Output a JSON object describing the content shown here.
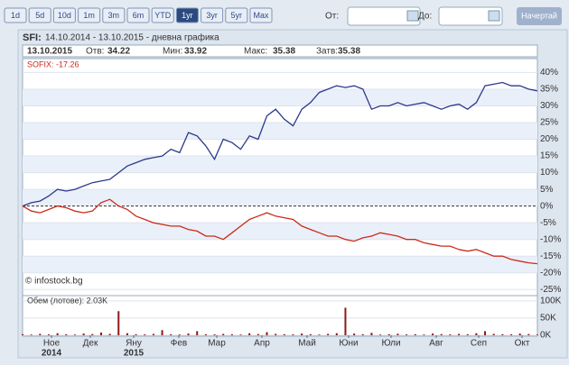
{
  "toolbar": {
    "range_buttons": [
      "1d",
      "5d",
      "10d",
      "1m",
      "3m",
      "6m",
      "YTD",
      "1yr",
      "3yr",
      "5yr",
      "Max"
    ],
    "active": "1yr",
    "from_label": "От:",
    "to_label": "До:",
    "draw_button": "Начертай"
  },
  "header": {
    "symbol": "SFI:",
    "title": "14.10.2014 - 13.10.2015 - дневна графика",
    "date": "13.10.2015",
    "fields": [
      {
        "label": "Отв:",
        "value": 34.22
      },
      {
        "label": "Мин:",
        "value": 33.92
      },
      {
        "label": "Макс:",
        "value": 35.38
      },
      {
        "label": "Затв:",
        "value": 35.38
      }
    ]
  },
  "chart_data": {
    "type": "line",
    "copyright": "© infostock.bg",
    "series": [
      {
        "color": "#2b3a8c",
        "values": [
          0,
          1,
          1.5,
          3,
          5,
          4.5,
          5,
          6,
          7,
          7.5,
          8,
          10,
          12,
          13,
          14,
          14.5,
          15,
          17,
          16,
          22,
          21,
          18,
          14,
          20,
          19,
          17,
          21,
          20,
          27,
          29,
          26,
          24,
          29,
          31,
          34,
          35,
          36,
          35.5,
          36,
          35,
          29,
          30,
          30,
          31,
          30,
          30.5,
          31,
          30,
          29,
          30,
          30.5,
          29,
          31,
          36,
          36.5,
          37,
          36,
          36,
          35,
          34.5
        ]
      },
      {
        "name": "SOFIX: -17.26",
        "color": "#cc2a1a",
        "values": [
          0,
          -1.5,
          -2,
          -1,
          0,
          -0.5,
          -1.5,
          -2,
          -1.5,
          1,
          2,
          0,
          -1,
          -3,
          -4,
          -5,
          -5.5,
          -6,
          -6,
          -7,
          -7.5,
          -9,
          -9,
          -10,
          -8,
          -6,
          -4,
          -3,
          -2,
          -3,
          -3.5,
          -4,
          -6,
          -7,
          -8,
          -9,
          -9,
          -10,
          -10.5,
          -9.5,
          -9,
          -8,
          -8.5,
          -9,
          -10,
          -10,
          -11,
          -11.5,
          -12,
          -12,
          -13,
          -13.5,
          -13,
          -14,
          -15,
          -15,
          -16,
          -16.5,
          -17,
          -17.26
        ]
      }
    ],
    "ylim": [
      -26,
      42
    ],
    "yticks": [
      {
        "value": 40,
        "label": "40%"
      },
      {
        "value": 35,
        "label": "35%"
      },
      {
        "value": 30,
        "label": "30%"
      },
      {
        "value": 25,
        "label": "25%"
      },
      {
        "value": 20,
        "label": "20%"
      },
      {
        "value": 15,
        "label": "15%"
      },
      {
        "value": 10,
        "label": "10%"
      },
      {
        "value": 5,
        "label": "5%"
      },
      {
        "value": 0,
        "label": "0%"
      },
      {
        "value": -5,
        "label": "-5%"
      },
      {
        "value": -10,
        "label": "-10%"
      },
      {
        "value": -15,
        "label": "-15%"
      },
      {
        "value": -20,
        "label": "-20%"
      },
      {
        "value": -25,
        "label": "-25%"
      }
    ],
    "month_labels": [
      "Ное",
      "Дек",
      "Яну",
      "Фев",
      "Мар",
      "Апр",
      "Май",
      "Юни",
      "Юли",
      "Авг",
      "Сеп",
      "Окт"
    ],
    "year_labels": [
      "2014",
      "2015"
    ],
    "volume": {
      "label": "Обем (лотове): 2.03K",
      "color": "#8b1a1a",
      "ylim": [
        0,
        110000
      ],
      "yticks": [
        {
          "value": 100000,
          "label": "100K"
        },
        {
          "value": 50000,
          "label": "50K"
        },
        {
          "value": 0,
          "label": "0K"
        }
      ],
      "values": [
        3000,
        2000,
        4000,
        2500,
        6000,
        3000,
        2000,
        5000,
        3500,
        8000,
        4000,
        70000,
        6000,
        3000,
        2500,
        4000,
        15000,
        3000,
        2000,
        5000,
        12000,
        3000,
        2500,
        4000,
        3000,
        2000,
        6000,
        3500,
        9000,
        4000,
        3000,
        2500,
        5000,
        3000,
        2000,
        4000,
        6000,
        80000,
        5000,
        3000,
        7000,
        2000,
        3000,
        4500,
        2500,
        3000,
        2000,
        5000,
        3500,
        2500,
        4000,
        3000,
        6000,
        12000,
        4000,
        3000,
        2500,
        5000,
        3500,
        2030
      ]
    }
  }
}
